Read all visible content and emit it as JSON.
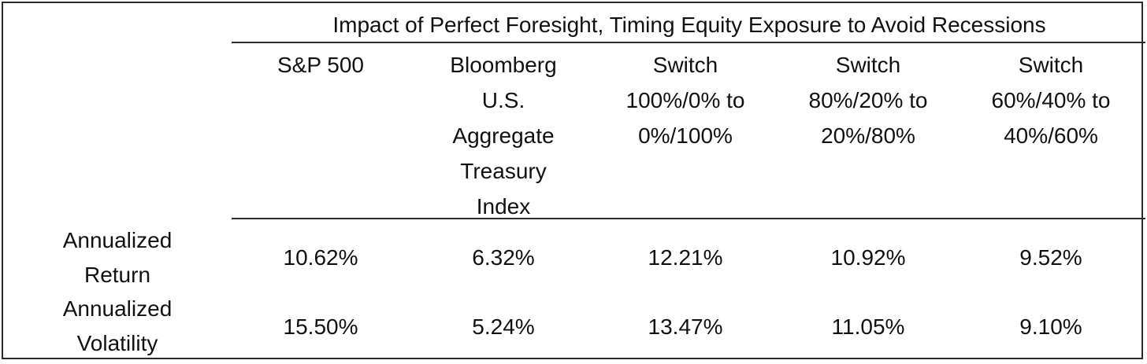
{
  "table": {
    "title": "Impact of Perfect Foresight, Timing Equity Exposure to Avoid Recessions",
    "columns": [
      {
        "lines": [
          "S&P 500"
        ]
      },
      {
        "lines": [
          "Bloomberg",
          "U.S.",
          "Aggregate",
          "Treasury",
          "Index"
        ]
      },
      {
        "lines": [
          "Switch",
          "100%/0% to",
          "0%/100%"
        ]
      },
      {
        "lines": [
          "Switch",
          "80%/20% to",
          "20%/80%"
        ]
      },
      {
        "lines": [
          "Switch",
          "60%/40% to",
          "40%/60%"
        ]
      }
    ],
    "rows": [
      {
        "label_lines": [
          "Annualized",
          "Return"
        ],
        "values": [
          "10.62%",
          "6.32%",
          "12.21%",
          "10.92%",
          "9.52%"
        ]
      },
      {
        "label_lines": [
          "Annualized",
          "Volatility"
        ],
        "values": [
          "15.50%",
          "5.24%",
          "13.47%",
          "11.05%",
          "9.10%"
        ]
      }
    ]
  }
}
